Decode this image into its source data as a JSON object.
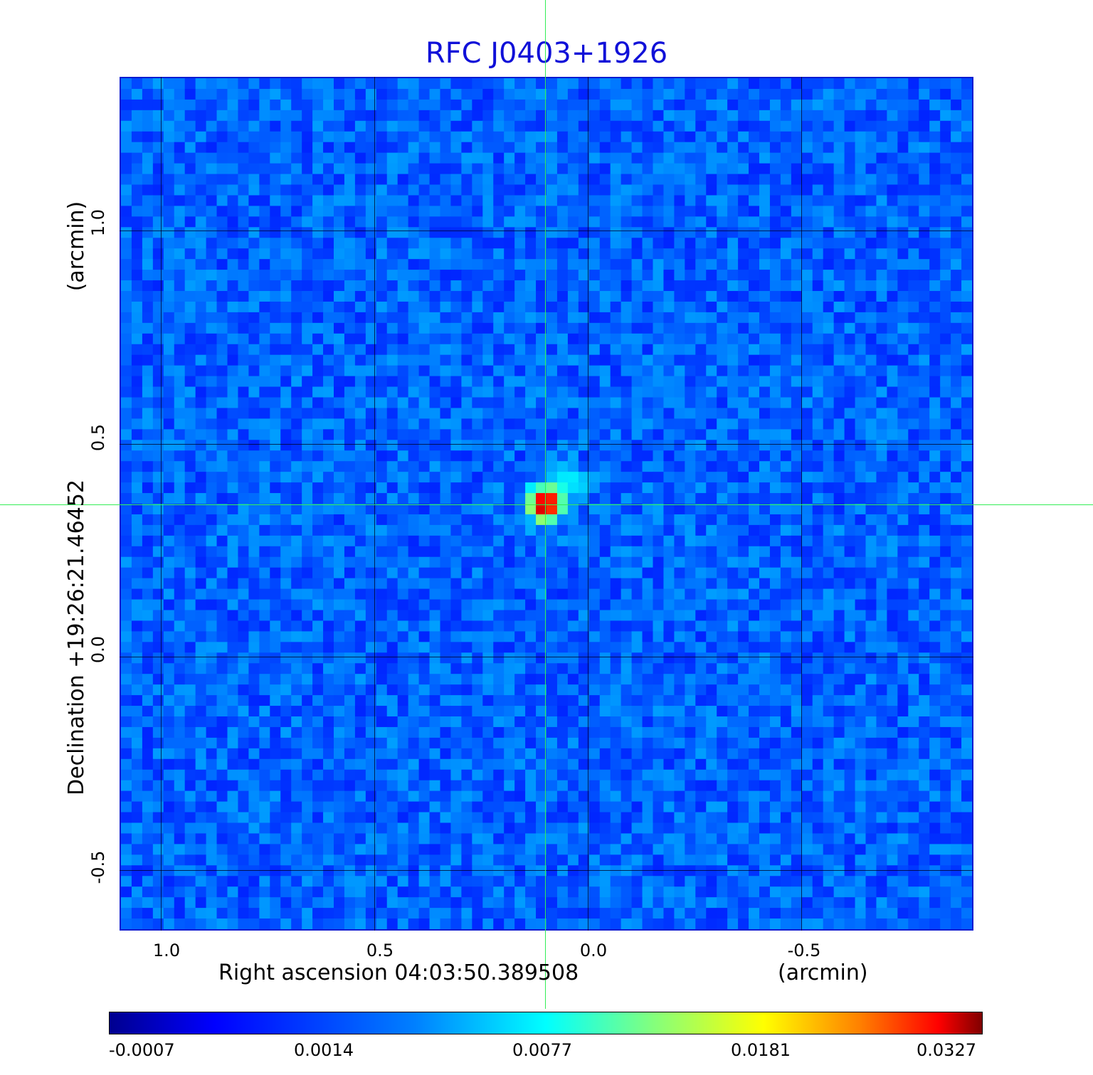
{
  "title": "RFC J0403+1926",
  "x_axis": {
    "label": "Right ascension  04:03:50.389508",
    "unit": "(arcmin)",
    "ticks": [
      "1.0",
      "0.5",
      "0.0",
      "-0.5"
    ]
  },
  "y_axis": {
    "label": "Declination  +19:26:21.46452",
    "unit": "(arcmin)",
    "ticks": [
      "1.0",
      "0.5",
      "0.0",
      "-0.5"
    ]
  },
  "colorbar": {
    "ticks": [
      "-0.0007",
      "0.0014",
      "0.0077",
      "0.0181",
      "0.0327"
    ]
  },
  "colors": {
    "title": "#1010d8",
    "background_map": "#1a55ee",
    "crosshair": "#33ee55",
    "peak": "#aa0000"
  }
}
